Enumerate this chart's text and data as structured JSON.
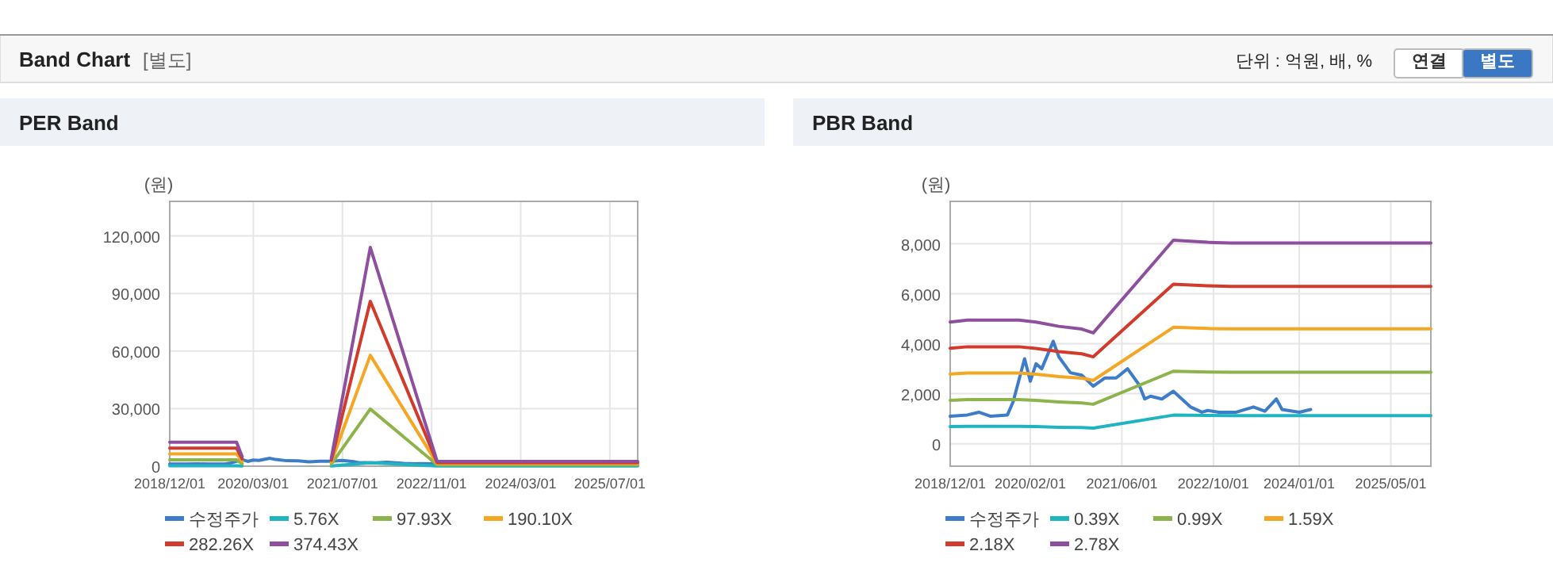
{
  "chart_data": [
    {
      "type": "line",
      "title": "PER Band",
      "ylabel": "(원)",
      "annotations": [
        "Band Chart",
        "[별도]",
        "단위 : 억원, 배, %",
        "연결",
        "별도"
      ],
      "xlim": [
        "2018-12",
        "2025-12"
      ],
      "ylim": [
        0,
        138000
      ],
      "xticks": [
        {
          "value": "2018-12",
          "label": "2018/12/01"
        },
        {
          "value": "2020-03",
          "label": "2020/03/01"
        },
        {
          "value": "2021-07",
          "label": "2021/07/01"
        },
        {
          "value": "2022-11",
          "label": "2022/11/01"
        },
        {
          "value": "2024-03",
          "label": "2024/03/01"
        },
        {
          "value": "2025-07",
          "label": "2025/07/01"
        }
      ],
      "yticks": [
        0,
        {
          "value": 30000,
          "label": "30,000"
        },
        {
          "value": 60000,
          "label": "60,000"
        },
        {
          "value": 90000,
          "label": "90,000"
        },
        {
          "value": 120000,
          "label": "120,000"
        }
      ],
      "grid": true,
      "legend": "bottom",
      "marker": "none",
      "line_style": "solid",
      "series": [
        {
          "name": "수정주가",
          "color": "#3d7cc9",
          "x": [
            "2018-12",
            "2019-03",
            "2019-05",
            "2019-07",
            "2019-10",
            "2019-11",
            "2020-01",
            "2020-02",
            "2020-03",
            "2020-04",
            "2020-06",
            "2020-07",
            "2020-09",
            "2020-11",
            "2021-01",
            "2021-03",
            "2021-05",
            "2021-07",
            "2021-09",
            "2021-10",
            "2021-11",
            "2022-01",
            "2022-03",
            "2022-06",
            "2022-08",
            "2022-09",
            "2022-11",
            "2023-02"
          ],
          "values": [
            1100,
            1150,
            1260,
            1100,
            1150,
            1680,
            3400,
            2500,
            3200,
            3000,
            4100,
            3470,
            2840,
            2740,
            2300,
            2630,
            2630,
            3000,
            2360,
            1790,
            1900,
            1790,
            2100,
            1470,
            1260,
            1330,
            1260,
            1260
          ]
        },
        {
          "name": "5.76X",
          "color": "#1fb5c0",
          "x": [
            "2018-12",
            "2019-12",
            "2020-01"
          ],
          "values": [
            200,
            200,
            100
          ]
        },
        {
          "name": "97.93X",
          "color": "#8db44b",
          "x": [
            "2018-12",
            "2019-12",
            "2020-01"
          ],
          "values": [
            3300,
            3300,
            1300
          ]
        },
        {
          "name": "190.10X",
          "color": "#f5a623",
          "x": [
            "2018-12",
            "2019-12",
            "2020-01"
          ],
          "values": [
            6400,
            6400,
            2600
          ]
        },
        {
          "name": "282.26X",
          "color": "#d23a2c",
          "x": [
            "2018-12",
            "2019-12",
            "2020-01"
          ],
          "values": [
            9400,
            9400,
            3800
          ]
        },
        {
          "name": "374.43X",
          "color": "#8e4f9e",
          "x": [
            "2018-12",
            "2019-12",
            "2020-01"
          ],
          "values": [
            12500,
            12500,
            5000
          ]
        },
        {
          "color": "#1fb5c0",
          "x": [
            "2021-05",
            "2021-12",
            "2022-12",
            "2025-12"
          ],
          "values": [
            100,
            1800,
            100,
            100
          ]
        },
        {
          "color": "#8db44b",
          "x": [
            "2021-05",
            "2021-12",
            "2022-12",
            "2025-12"
          ],
          "values": [
            1100,
            29800,
            700,
            700
          ]
        },
        {
          "color": "#f5a623",
          "x": [
            "2021-05",
            "2021-12",
            "2022-12",
            "2025-12"
          ],
          "values": [
            2100,
            57800,
            1300,
            1300
          ]
        },
        {
          "color": "#d23a2c",
          "x": [
            "2021-05",
            "2021-12",
            "2022-12",
            "2025-12"
          ],
          "values": [
            3100,
            85900,
            1900,
            1900
          ]
        },
        {
          "color": "#8e4f9e",
          "x": [
            "2021-05",
            "2021-12",
            "2022-12",
            "2025-12"
          ],
          "values": [
            4100,
            114000,
            2500,
            2500
          ]
        }
      ]
    },
    {
      "type": "line",
      "title": "PBR Band",
      "ylabel": "(원)",
      "xlim": [
        "2018-12",
        "2025-12"
      ],
      "ylim": [
        -900,
        9700
      ],
      "xticks": [
        {
          "value": "2018-12",
          "label": "2018/12/01"
        },
        {
          "value": "2020-02",
          "label": "2020/02/01"
        },
        {
          "value": "2021-06",
          "label": "2021/06/01"
        },
        {
          "value": "2022-10",
          "label": "2022/10/01"
        },
        {
          "value": "2024-01",
          "label": "2024/01/01"
        },
        {
          "value": "2025-05",
          "label": "2025/05/01"
        }
      ],
      "yticks": [
        0,
        {
          "value": 2000,
          "label": "2,000"
        },
        {
          "value": 4000,
          "label": "4,000"
        },
        {
          "value": 6000,
          "label": "6,000"
        },
        {
          "value": 8000,
          "label": "8,000"
        }
      ],
      "grid": true,
      "legend": "bottom",
      "marker": "none",
      "line_style": "solid",
      "series": [
        {
          "name": "수정주가",
          "color": "#3d7cc9",
          "x": [
            "2018-12",
            "2019-03",
            "2019-05",
            "2019-07",
            "2019-10",
            "2019-11",
            "2020-01",
            "2020-02",
            "2020-03",
            "2020-04",
            "2020-06",
            "2020-07",
            "2020-09",
            "2020-11",
            "2021-01",
            "2021-03",
            "2021-05",
            "2021-07",
            "2021-09",
            "2021-10",
            "2021-11",
            "2022-01",
            "2022-03",
            "2022-06",
            "2022-08",
            "2022-09",
            "2022-11",
            "2023-02",
            "2023-05",
            "2023-07",
            "2023-09",
            "2023-10",
            "2024-01",
            "2024-03"
          ],
          "values": [
            1100,
            1150,
            1260,
            1100,
            1150,
            1680,
            3400,
            2500,
            3200,
            3000,
            4100,
            3470,
            2840,
            2740,
            2300,
            2630,
            2630,
            3000,
            2360,
            1790,
            1900,
            1790,
            2100,
            1470,
            1260,
            1330,
            1260,
            1260,
            1470,
            1300,
            1790,
            1370,
            1260,
            1370
          ]
        },
        {
          "name": "0.39X",
          "color": "#1fb5c0",
          "x": [
            "2018-12",
            "2019-03",
            "2019-12",
            "2020-03",
            "2020-07",
            "2020-11",
            "2021-01",
            "2022-03",
            "2022-09",
            "2023-01",
            "2025-12"
          ],
          "values": [
            683,
            694,
            694,
            683,
            659,
            644,
            622,
            1143,
            1131,
            1127,
            1127
          ]
        },
        {
          "name": "0.99X",
          "color": "#8db44b",
          "x": [
            "2018-12",
            "2019-03",
            "2019-12",
            "2020-03",
            "2020-07",
            "2020-11",
            "2021-01",
            "2022-03",
            "2022-09",
            "2023-01",
            "2025-12"
          ],
          "values": [
            1734,
            1762,
            1762,
            1733,
            1673,
            1634,
            1579,
            2901,
            2871,
            2861,
            2861
          ]
        },
        {
          "name": "1.59X",
          "color": "#f5a623",
          "x": [
            "2018-12",
            "2019-03",
            "2019-12",
            "2020-03",
            "2020-07",
            "2020-11",
            "2021-01",
            "2022-03",
            "2022-09",
            "2023-01",
            "2025-12"
          ],
          "values": [
            2786,
            2830,
            2830,
            2783,
            2687,
            2624,
            2536,
            4659,
            4611,
            4595,
            4595
          ]
        },
        {
          "name": "2.18X",
          "color": "#d23a2c",
          "x": [
            "2018-12",
            "2019-03",
            "2019-12",
            "2020-03",
            "2020-07",
            "2020-11",
            "2021-01",
            "2022-03",
            "2022-09",
            "2023-01",
            "2025-12"
          ],
          "values": [
            3819,
            3880,
            3880,
            3815,
            3684,
            3597,
            3477,
            6387,
            6322,
            6300,
            6300
          ]
        },
        {
          "name": "2.78X",
          "color": "#8e4f9e",
          "x": [
            "2018-12",
            "2019-03",
            "2019-12",
            "2020-03",
            "2020-07",
            "2020-11",
            "2021-01",
            "2022-03",
            "2022-09",
            "2023-01",
            "2025-12"
          ],
          "values": [
            4871,
            4948,
            4948,
            4865,
            4698,
            4587,
            4434,
            8145,
            8062,
            8034,
            8034
          ]
        }
      ]
    }
  ]
}
